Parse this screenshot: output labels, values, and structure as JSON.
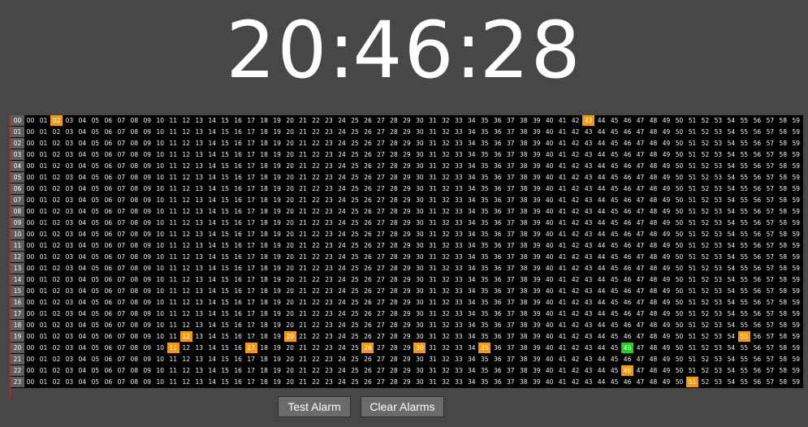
{
  "clock": {
    "hours": "20",
    "minutes": "46",
    "seconds": "28",
    "separator": ":"
  },
  "grid": {
    "hours": [
      "00",
      "01",
      "02",
      "03",
      "04",
      "05",
      "06",
      "07",
      "08",
      "09",
      "10",
      "11",
      "12",
      "13",
      "14",
      "15",
      "16",
      "17",
      "18",
      "19",
      "20",
      "21",
      "22",
      "23"
    ],
    "minutes": [
      "00",
      "01",
      "02",
      "03",
      "04",
      "05",
      "06",
      "07",
      "08",
      "09",
      "10",
      "11",
      "12",
      "13",
      "14",
      "15",
      "16",
      "17",
      "18",
      "19",
      "20",
      "21",
      "22",
      "23",
      "24",
      "25",
      "26",
      "27",
      "28",
      "29",
      "30",
      "31",
      "32",
      "33",
      "34",
      "35",
      "36",
      "37",
      "38",
      "39",
      "40",
      "41",
      "42",
      "43",
      "44",
      "45",
      "46",
      "47",
      "48",
      "49",
      "50",
      "51",
      "52",
      "53",
      "54",
      "55",
      "56",
      "57",
      "58",
      "59"
    ],
    "alarms": [
      {
        "hour": 0,
        "minute": 2
      },
      {
        "hour": 0,
        "minute": 43
      },
      {
        "hour": 19,
        "minute": 12
      },
      {
        "hour": 19,
        "minute": 20
      },
      {
        "hour": 19,
        "minute": 55
      },
      {
        "hour": 20,
        "minute": 11
      },
      {
        "hour": 20,
        "minute": 17
      },
      {
        "hour": 20,
        "minute": 26
      },
      {
        "hour": 20,
        "minute": 30
      },
      {
        "hour": 20,
        "minute": 35
      },
      {
        "hour": 22,
        "minute": 46
      },
      {
        "hour": 23,
        "minute": 51
      }
    ],
    "current": {
      "hour": 20,
      "minute": 46
    },
    "colors": {
      "alarm": "#f29a12",
      "current": "#1fd21f",
      "background": "#000000",
      "hour_label_bg": "#5e5e5e"
    }
  },
  "controls": {
    "test_alarm_label": "Test Alarm",
    "clear_alarms_label": "Clear Alarms"
  }
}
